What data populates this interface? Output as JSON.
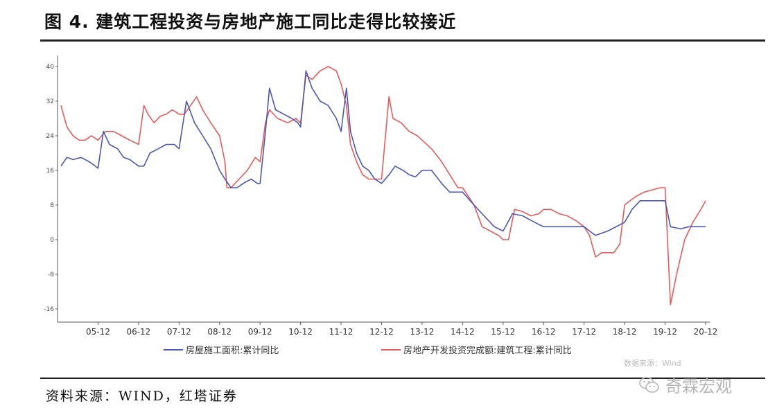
{
  "page": {
    "title": "图 4. 建筑工程投资与房地产施工同比走得比较接近",
    "source": "资料来源：WIND，红塔证券",
    "data_source_note": "数据来源：Wind",
    "watermark": "奇霖宏观",
    "watermark_icon": "wechat-icon"
  },
  "chart_data": {
    "type": "line",
    "xlim": [
      2004.917,
      2020.917
    ],
    "ylim": [
      -20,
      40
    ],
    "y_ticks": [
      "40",
      "32",
      "24",
      "16",
      "8",
      "0",
      "-8",
      "-16"
    ],
    "y_tick_values": [
      40,
      32,
      24,
      16,
      8,
      0,
      -8,
      -16
    ],
    "x_ticks": [
      "05-12",
      "06-12",
      "07-12",
      "08-12",
      "09-12",
      "10-12",
      "11-12",
      "12-12",
      "13-12",
      "14-12",
      "15-12",
      "16-12",
      "17-12",
      "18-12",
      "19-12",
      "20-12"
    ],
    "x_tick_values": [
      2005.917,
      2006.917,
      2007.917,
      2008.917,
      2009.917,
      2010.917,
      2011.917,
      2012.917,
      2013.917,
      2014.917,
      2015.917,
      2016.917,
      2017.917,
      2018.917,
      2019.917,
      2020.917
    ],
    "grid": false,
    "legend_position": "bottom",
    "series": [
      {
        "name": "房屋施工面积:累计同比",
        "color": "#4a56b5",
        "points": [
          [
            2005.0,
            17
          ],
          [
            2005.15,
            19
          ],
          [
            2005.3,
            18.5
          ],
          [
            2005.5,
            19
          ],
          [
            2005.7,
            18
          ],
          [
            2005.85,
            17
          ],
          [
            2005.917,
            16.5
          ],
          [
            2006.05,
            25
          ],
          [
            2006.2,
            22
          ],
          [
            2006.4,
            21
          ],
          [
            2006.55,
            19
          ],
          [
            2006.7,
            18.5
          ],
          [
            2006.917,
            17
          ],
          [
            2007.05,
            17
          ],
          [
            2007.2,
            20
          ],
          [
            2007.4,
            21
          ],
          [
            2007.6,
            22
          ],
          [
            2007.8,
            22
          ],
          [
            2007.917,
            21
          ],
          [
            2008.1,
            32
          ],
          [
            2008.3,
            27
          ],
          [
            2008.5,
            24
          ],
          [
            2008.7,
            21
          ],
          [
            2008.917,
            16
          ],
          [
            2009.05,
            14
          ],
          [
            2009.2,
            12
          ],
          [
            2009.35,
            12
          ],
          [
            2009.5,
            13
          ],
          [
            2009.7,
            14
          ],
          [
            2009.85,
            13
          ],
          [
            2009.917,
            13
          ],
          [
            2010.05,
            25
          ],
          [
            2010.15,
            35
          ],
          [
            2010.3,
            30
          ],
          [
            2010.5,
            29
          ],
          [
            2010.7,
            28
          ],
          [
            2010.85,
            27
          ],
          [
            2010.917,
            26
          ],
          [
            2011.05,
            39
          ],
          [
            2011.2,
            35
          ],
          [
            2011.4,
            32
          ],
          [
            2011.6,
            31
          ],
          [
            2011.8,
            28
          ],
          [
            2011.917,
            25
          ],
          [
            2012.05,
            35
          ],
          [
            2012.15,
            25
          ],
          [
            2012.3,
            20
          ],
          [
            2012.45,
            17
          ],
          [
            2012.6,
            16
          ],
          [
            2012.75,
            14
          ],
          [
            2012.917,
            13
          ],
          [
            2013.1,
            15
          ],
          [
            2013.25,
            17
          ],
          [
            2013.45,
            16
          ],
          [
            2013.6,
            15
          ],
          [
            2013.75,
            14.5
          ],
          [
            2013.917,
            16
          ],
          [
            2014.15,
            16
          ],
          [
            2014.4,
            13
          ],
          [
            2014.6,
            11
          ],
          [
            2014.8,
            11
          ],
          [
            2014.917,
            11
          ],
          [
            2015.2,
            8
          ],
          [
            2015.5,
            5
          ],
          [
            2015.7,
            3
          ],
          [
            2015.917,
            2
          ],
          [
            2016.15,
            6
          ],
          [
            2016.4,
            5.5
          ],
          [
            2016.6,
            4.5
          ],
          [
            2016.8,
            3.5
          ],
          [
            2016.917,
            3
          ],
          [
            2017.3,
            3
          ],
          [
            2017.6,
            3
          ],
          [
            2017.917,
            3
          ],
          [
            2018.05,
            2
          ],
          [
            2018.2,
            1
          ],
          [
            2018.5,
            2
          ],
          [
            2018.917,
            4
          ],
          [
            2019.1,
            7
          ],
          [
            2019.3,
            9
          ],
          [
            2019.5,
            9
          ],
          [
            2019.7,
            9
          ],
          [
            2019.917,
            9
          ],
          [
            2020.05,
            3
          ],
          [
            2020.3,
            2.5
          ],
          [
            2020.5,
            3
          ],
          [
            2020.7,
            3
          ],
          [
            2020.917,
            3
          ]
        ]
      },
      {
        "name": "房地产开发投资完成额:建筑工程:累计同比",
        "color": "#e8595a",
        "points": [
          [
            2005.0,
            31
          ],
          [
            2005.15,
            26
          ],
          [
            2005.3,
            24
          ],
          [
            2005.45,
            23
          ],
          [
            2005.6,
            23
          ],
          [
            2005.75,
            24
          ],
          [
            2005.917,
            23
          ],
          [
            2006.1,
            25
          ],
          [
            2006.3,
            25
          ],
          [
            2006.5,
            24
          ],
          [
            2006.7,
            23
          ],
          [
            2006.917,
            22
          ],
          [
            2007.05,
            31
          ],
          [
            2007.15,
            29
          ],
          [
            2007.3,
            27
          ],
          [
            2007.45,
            28.5
          ],
          [
            2007.6,
            29
          ],
          [
            2007.75,
            30
          ],
          [
            2007.917,
            29
          ],
          [
            2008.05,
            29
          ],
          [
            2008.2,
            31
          ],
          [
            2008.35,
            33
          ],
          [
            2008.5,
            30
          ],
          [
            2008.7,
            27
          ],
          [
            2008.917,
            24
          ],
          [
            2009.05,
            18
          ],
          [
            2009.1,
            12
          ],
          [
            2009.2,
            12
          ],
          [
            2009.4,
            14
          ],
          [
            2009.6,
            16
          ],
          [
            2009.8,
            19
          ],
          [
            2009.917,
            18
          ],
          [
            2010.05,
            27
          ],
          [
            2010.15,
            30
          ],
          [
            2010.35,
            28
          ],
          [
            2010.6,
            27
          ],
          [
            2010.8,
            28
          ],
          [
            2010.917,
            27
          ],
          [
            2011.05,
            38
          ],
          [
            2011.2,
            37
          ],
          [
            2011.4,
            39
          ],
          [
            2011.6,
            40
          ],
          [
            2011.8,
            39
          ],
          [
            2011.917,
            36
          ],
          [
            2012.05,
            31
          ],
          [
            2012.15,
            22
          ],
          [
            2012.3,
            18
          ],
          [
            2012.45,
            15
          ],
          [
            2012.6,
            14
          ],
          [
            2012.75,
            14
          ],
          [
            2012.917,
            14
          ],
          [
            2013.1,
            33
          ],
          [
            2013.2,
            28
          ],
          [
            2013.4,
            27
          ],
          [
            2013.6,
            25
          ],
          [
            2013.8,
            24
          ],
          [
            2013.917,
            23
          ],
          [
            2014.15,
            21
          ],
          [
            2014.4,
            18
          ],
          [
            2014.6,
            15
          ],
          [
            2014.8,
            12
          ],
          [
            2014.917,
            12
          ],
          [
            2015.2,
            8
          ],
          [
            2015.4,
            3
          ],
          [
            2015.6,
            2
          ],
          [
            2015.8,
            1
          ],
          [
            2015.917,
            0
          ],
          [
            2016.05,
            0
          ],
          [
            2016.2,
            7
          ],
          [
            2016.4,
            6.5
          ],
          [
            2016.6,
            5.5
          ],
          [
            2016.8,
            6
          ],
          [
            2016.917,
            7
          ],
          [
            2017.1,
            7
          ],
          [
            2017.3,
            6
          ],
          [
            2017.5,
            5.5
          ],
          [
            2017.7,
            4.5
          ],
          [
            2017.917,
            3
          ],
          [
            2018.05,
            1
          ],
          [
            2018.2,
            -4
          ],
          [
            2018.35,
            -3
          ],
          [
            2018.5,
            -3
          ],
          [
            2018.65,
            -3
          ],
          [
            2018.8,
            -1
          ],
          [
            2018.917,
            8
          ],
          [
            2019.05,
            9
          ],
          [
            2019.2,
            10
          ],
          [
            2019.4,
            11
          ],
          [
            2019.6,
            11.5
          ],
          [
            2019.8,
            12
          ],
          [
            2019.917,
            12
          ],
          [
            2020.05,
            -15
          ],
          [
            2020.2,
            -8
          ],
          [
            2020.4,
            0
          ],
          [
            2020.6,
            4
          ],
          [
            2020.8,
            7
          ],
          [
            2020.917,
            9
          ]
        ]
      }
    ]
  }
}
